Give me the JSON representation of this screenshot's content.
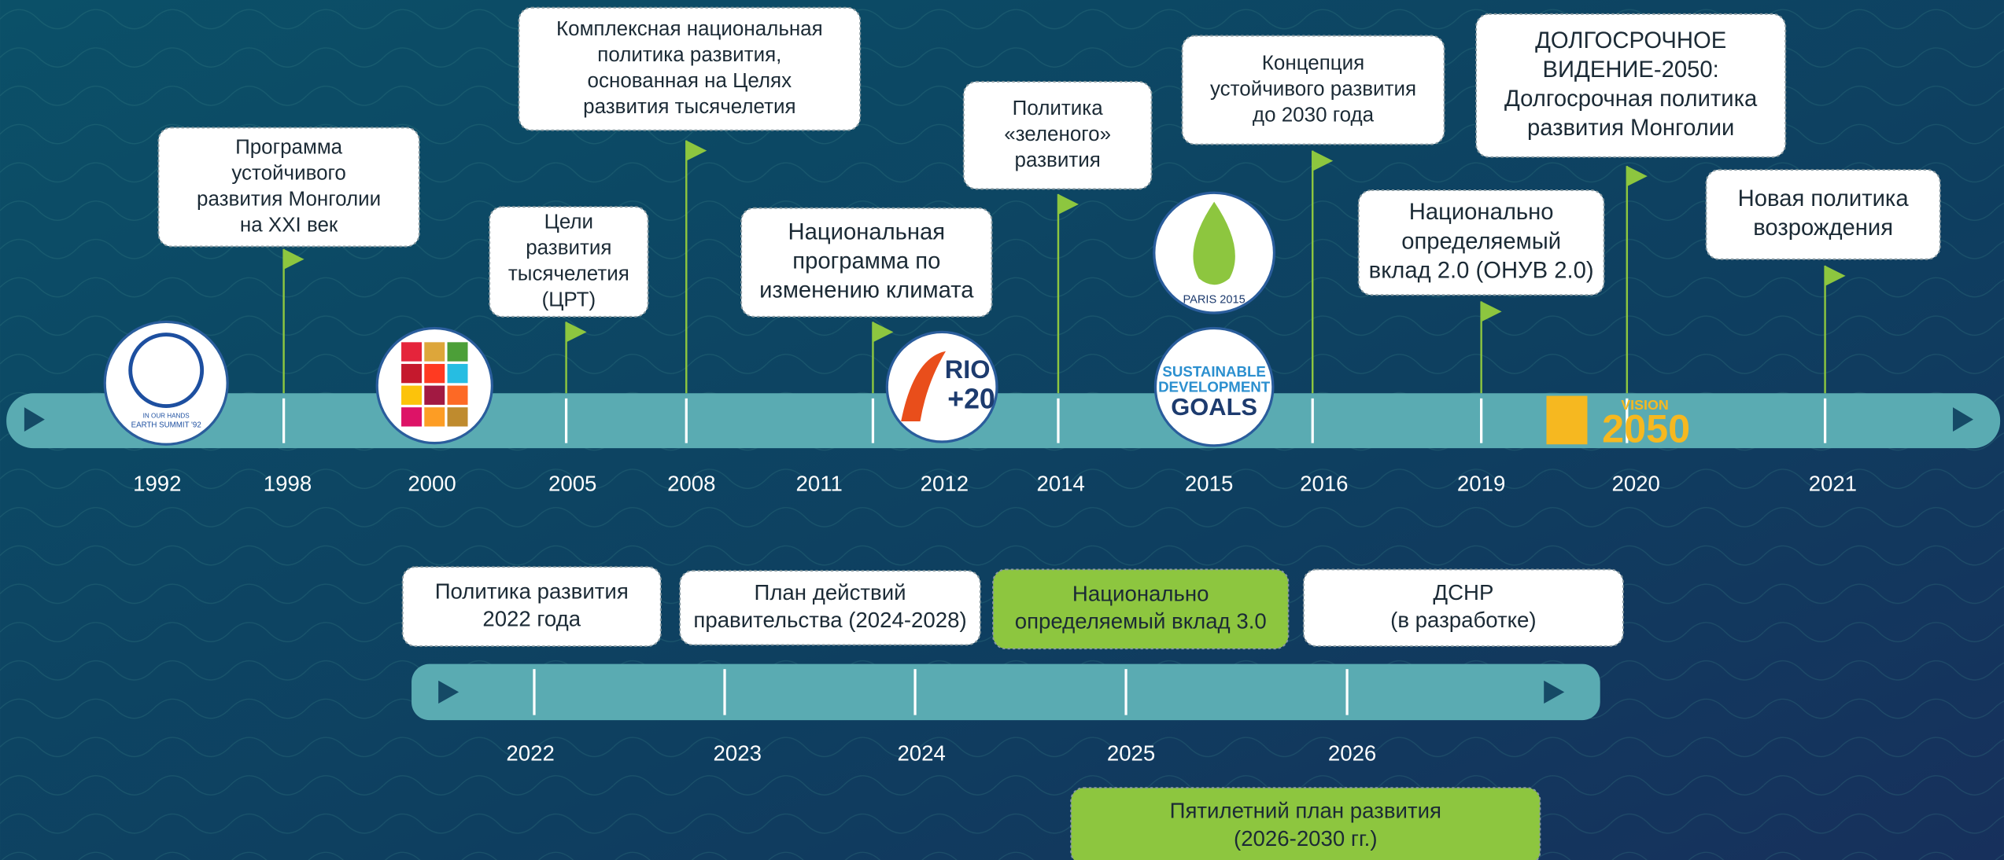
{
  "top_timeline": {
    "years": [
      "1992",
      "1998",
      "2000",
      "2005",
      "2008",
      "2011",
      "2012",
      "2014",
      "2015",
      "2016",
      "2019",
      "2020",
      "2021"
    ],
    "events": [
      {
        "lines": [
          "Программа",
          "устойчивого",
          "развития Монголии",
          "на XXI век"
        ]
      },
      {
        "lines": [
          "Цели",
          "развития",
          "тысячелетия",
          "(ЦРТ)"
        ]
      },
      {
        "lines": [
          "Комплексная национальная",
          "политика развития,",
          "основанная на Целях",
          "развития тысячелетия"
        ]
      },
      {
        "lines": [
          "Национальная",
          "программа по",
          "изменению климата"
        ]
      },
      {
        "lines": [
          "Политика",
          "«зеленого»",
          "развития"
        ]
      },
      {
        "lines": [
          "Концепция",
          "устойчивого развития",
          "до 2030 года"
        ]
      },
      {
        "lines": [
          "Национально",
          "определяемый",
          "вклад 2.0 (ОНУВ 2.0)"
        ]
      },
      {
        "lines": [
          "ДОЛГОСРОЧНОЕ",
          "ВИДЕНИЕ-2050:",
          "Долгосрочная политика",
          "развития Монголии"
        ]
      },
      {
        "lines": [
          "Новая политика",
          "возрождения"
        ]
      }
    ]
  },
  "logos": {
    "earth_summit": [
      "IN OUR HANDS",
      "EARTH SUMMIT '92"
    ],
    "rio": [
      "RIO",
      "+20"
    ],
    "paris": [
      "PARIS 2015"
    ],
    "sdg": [
      "SUSTAINABLE",
      "DEVELOPMENT",
      "GOALS"
    ],
    "vision": [
      "VISION",
      "2050"
    ]
  },
  "bottom_timeline": {
    "years": [
      "2022",
      "2023",
      "2024",
      "2025",
      "2026"
    ],
    "events": [
      {
        "lines": [
          "Политика развития",
          "2022 года"
        ]
      },
      {
        "lines": [
          "План действий",
          "правительства (2024-2028)"
        ]
      },
      {
        "lines": [
          "Национально",
          "определяемый вклад 3.0"
        ]
      },
      {
        "lines": [
          "ДСНР",
          "(в разработке)"
        ]
      },
      {
        "lines": [
          "Пятилетний план развития",
          "(2026-2030 гг.)"
        ]
      }
    ]
  }
}
